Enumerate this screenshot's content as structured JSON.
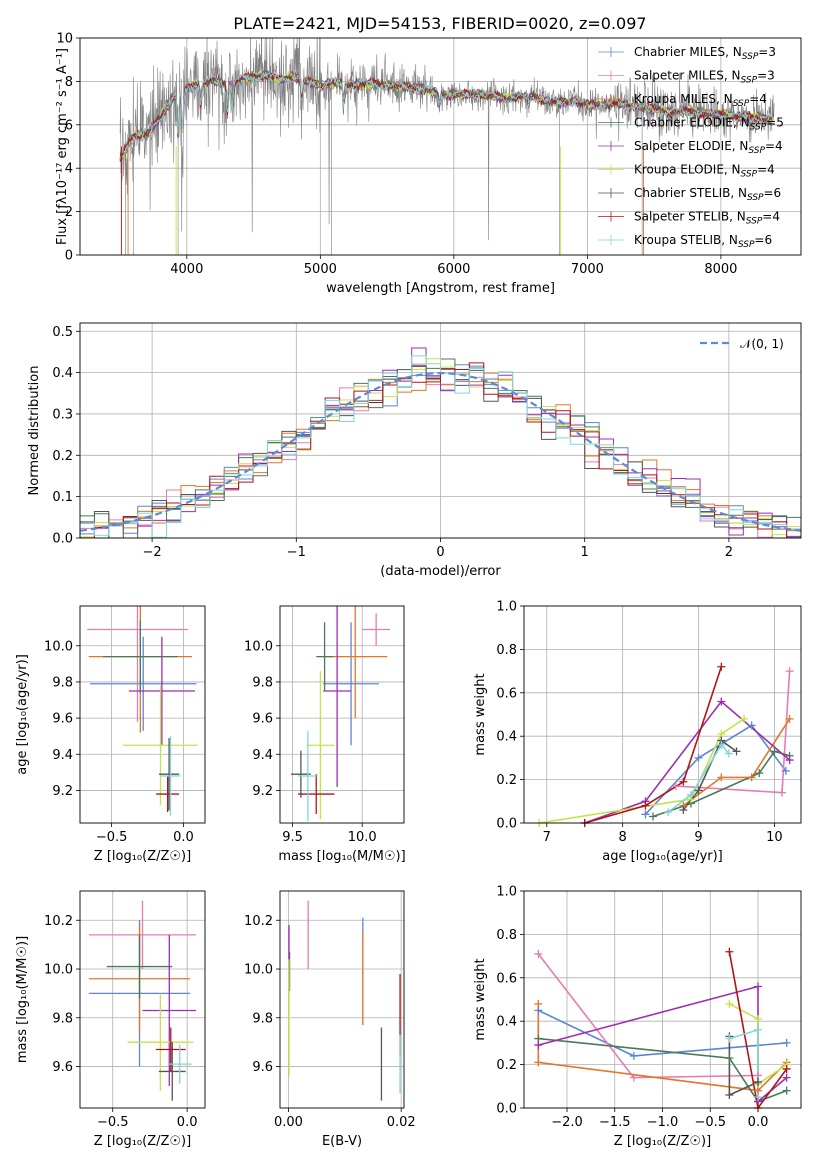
{
  "figure_title": "PLATE=2421, MJD=54153, FIBERID=0020, z=0.097",
  "colors": {
    "Chabrier MILES": "#5b86d6",
    "Salpeter MILES": "#e77cb3",
    "Kroupa MILES": "#e4762a",
    "Chabrier ELODIE": "#4a7a55",
    "Salpeter ELODIE": "#9c2fb0",
    "Kroupa ELODIE": "#c6e24a",
    "Chabrier STELIB": "#555555",
    "Salpeter STELIB": "#b01515",
    "Kroupa STELIB": "#7fd6da",
    "data": "#808080",
    "gauss": "#5a8bd6"
  },
  "chart_data": [
    {
      "id": "spectrum",
      "type": "line",
      "title": "PLATE=2421, MJD=54153, FIBERID=0020, z=0.097",
      "xlabel": "wavelength [Angstrom, rest frame]",
      "ylabel": "Flux [fλ10⁻¹⁷ erg cm⁻² s⁻¹ A⁻¹]",
      "xlim": [
        3200,
        8600
      ],
      "ylim": [
        0,
        10
      ],
      "xticks": [
        4000,
        5000,
        6000,
        7000,
        8000
      ],
      "yticks": [
        0,
        2,
        4,
        6,
        8,
        10
      ],
      "legend_position": "upper-right",
      "legend": [
        "Chabrier MILES, N_SSP=3",
        "Salpeter MILES, N_SSP=3",
        "Kroupa MILES, N_SSP=4",
        "Chabrier ELODIE, N_SSP=5",
        "Salpeter ELODIE, N_SSP=4",
        "Kroupa ELODIE, N_SSP=4",
        "Chabrier STELIB, N_SSP=6",
        "Salpeter STELIB, N_SSP=4",
        "Kroupa STELIB, N_SSP=6"
      ],
      "continuum": [
        [
          3500,
          4.4
        ],
        [
          3600,
          5.5
        ],
        [
          3700,
          5.6
        ],
        [
          3800,
          6.3
        ],
        [
          3900,
          7.3
        ],
        [
          4000,
          7.7
        ],
        [
          4100,
          7.9
        ],
        [
          4200,
          8.1
        ],
        [
          4300,
          7.8
        ],
        [
          4400,
          8.1
        ],
        [
          4500,
          8.2
        ],
        [
          4600,
          8.3
        ],
        [
          4700,
          8.1
        ],
        [
          4800,
          8.2
        ],
        [
          4900,
          8.0
        ],
        [
          5000,
          7.8
        ],
        [
          5100,
          8.0
        ],
        [
          5200,
          7.8
        ],
        [
          5300,
          7.9
        ],
        [
          5400,
          7.9
        ],
        [
          5500,
          7.8
        ],
        [
          5600,
          7.8
        ],
        [
          5700,
          7.7
        ],
        [
          5800,
          7.6
        ],
        [
          5900,
          7.4
        ],
        [
          6000,
          7.4
        ],
        [
          6100,
          7.4
        ],
        [
          6200,
          7.4
        ],
        [
          6300,
          7.3
        ],
        [
          6400,
          7.2
        ],
        [
          6500,
          7.3
        ],
        [
          6600,
          7.3
        ],
        [
          6700,
          7.1
        ],
        [
          6800,
          7.0
        ],
        [
          6900,
          7.1
        ],
        [
          7000,
          6.9
        ],
        [
          7100,
          6.9
        ],
        [
          7200,
          7.0
        ],
        [
          7300,
          6.9
        ],
        [
          7400,
          6.8
        ],
        [
          7500,
          6.7
        ],
        [
          7600,
          6.6
        ],
        [
          7700,
          6.6
        ],
        [
          7800,
          6.6
        ],
        [
          7900,
          6.5
        ],
        [
          8000,
          6.5
        ],
        [
          8100,
          6.4
        ],
        [
          8200,
          6.4
        ],
        [
          8300,
          6.3
        ],
        [
          8400,
          6.3
        ]
      ],
      "absorption_lines": [
        [
          3934,
          5.5
        ],
        [
          3969,
          5.7
        ],
        [
          4102,
          6.9
        ],
        [
          4305,
          6.6
        ],
        [
          4341,
          6.8
        ],
        [
          4861,
          7.3
        ],
        [
          5175,
          7.2
        ],
        [
          5893,
          7.0
        ],
        [
          6563,
          7.0
        ]
      ]
    },
    {
      "id": "residuals",
      "type": "line",
      "xlabel": "(data-model)/error",
      "ylabel": "Normed distribution",
      "xlim": [
        -2.5,
        2.5
      ],
      "ylim": [
        0,
        0.52
      ],
      "xticks": [
        -2,
        -1,
        0,
        1,
        2
      ],
      "yticks": [
        0.0,
        0.1,
        0.2,
        0.3,
        0.4,
        0.5
      ],
      "legend_position": "upper-right",
      "legend": [
        "𝒩(0, 1)"
      ],
      "bin_edges": [
        -2.5,
        2.5
      ],
      "bin_count": 50
    },
    {
      "id": "age-vs-Z",
      "type": "scatter",
      "xlabel": "Z [log₁₀(Z/Z☉)]",
      "ylabel": "age  [log₁₀(age/yr)]",
      "xlim": [
        -0.72,
        0.15
      ],
      "ylim": [
        9.02,
        10.22
      ],
      "xticks": [
        -0.5,
        0.0
      ],
      "yticks": [
        9.2,
        9.4,
        9.6,
        9.8,
        10.0
      ],
      "points": [
        {
          "model": "Chabrier MILES",
          "x": -0.28,
          "xerr": 0.37,
          "y": 9.79,
          "yerr": 0.26
        },
        {
          "model": "Salpeter MILES",
          "x": -0.32,
          "xerr": 0.35,
          "y": 10.09,
          "yerr": 0.51
        },
        {
          "model": "Kroupa MILES",
          "x": -0.3,
          "xerr": 0.36,
          "y": 9.94,
          "yerr": 0.42
        },
        {
          "model": "Chabrier ELODIE",
          "x": -0.3,
          "xerr": 0.26,
          "y": 9.94,
          "yerr": 0.2
        },
        {
          "model": "Salpeter ELODIE",
          "x": -0.15,
          "xerr": 0.23,
          "y": 9.75,
          "yerr": 0.3
        },
        {
          "model": "Kroupa ELODIE",
          "x": -0.16,
          "xerr": 0.26,
          "y": 9.45,
          "yerr": 0.33
        },
        {
          "model": "Chabrier STELIB",
          "x": -0.1,
          "xerr": 0.07,
          "y": 9.29,
          "yerr": 0.2
        },
        {
          "model": "Salpeter STELIB",
          "x": -0.11,
          "xerr": 0.08,
          "y": 9.18,
          "yerr": 0.1
        },
        {
          "model": "Kroupa STELIB",
          "x": -0.09,
          "xerr": 0.07,
          "y": 9.28,
          "yerr": 0.22
        }
      ]
    },
    {
      "id": "age-vs-mass",
      "type": "scatter",
      "xlabel": "mass [log₁₀(M/M☉)]",
      "xlim": [
        9.41,
        10.3
      ],
      "ylim": [
        9.02,
        10.22
      ],
      "xticks": [
        9.5,
        10.0
      ],
      "yticks": [
        9.2,
        9.4,
        9.6,
        9.8,
        10.0
      ],
      "points": [
        {
          "model": "Chabrier MILES",
          "x": 9.92,
          "xerr": 0.2,
          "y": 9.79,
          "yerr": 0.34
        },
        {
          "model": "Salpeter MILES",
          "x": 10.1,
          "xerr": 0.1,
          "y": 10.09,
          "yerr": 0.09
        },
        {
          "model": "Kroupa MILES",
          "x": 9.95,
          "xerr": 0.23,
          "y": 9.94,
          "yerr": 0.34
        },
        {
          "model": "Chabrier ELODIE",
          "x": 9.73,
          "xerr": 0.06,
          "y": 9.94,
          "yerr": 0.19
        },
        {
          "model": "Salpeter ELODIE",
          "x": 9.82,
          "xerr": 0.1,
          "y": 9.75,
          "yerr": 0.53
        },
        {
          "model": "Kroupa ELODIE",
          "x": 9.7,
          "xerr": 0.1,
          "y": 9.45,
          "yerr": 0.41
        },
        {
          "model": "Chabrier STELIB",
          "x": 9.56,
          "xerr": 0.07,
          "y": 9.29,
          "yerr": 0.13
        },
        {
          "model": "Salpeter STELIB",
          "x": 9.67,
          "xerr": 0.13,
          "y": 9.18,
          "yerr": 0.11
        },
        {
          "model": "Kroupa STELIB",
          "x": 9.61,
          "xerr": 0.07,
          "y": 9.28,
          "yerr": 0.25
        }
      ]
    },
    {
      "id": "weight-vs-age",
      "type": "line",
      "xlabel": "age  [log₁₀(age/yr)]",
      "ylabel": "mass weight",
      "xlim": [
        6.7,
        10.35
      ],
      "ylim": [
        0,
        1.0
      ],
      "xticks": [
        7,
        8,
        9,
        10
      ],
      "yticks": [
        0.0,
        0.2,
        0.4,
        0.6,
        0.8,
        1.0
      ],
      "series": [
        {
          "model": "Chabrier MILES",
          "points": [
            [
              8.3,
              0.04
            ],
            [
              9.0,
              0.3
            ],
            [
              9.7,
              0.45
            ],
            [
              10.15,
              0.24
            ]
          ]
        },
        {
          "model": "Salpeter MILES",
          "points": [
            [
              8.7,
              0.17
            ],
            [
              10.1,
              0.14
            ],
            [
              10.2,
              0.7
            ]
          ]
        },
        {
          "model": "Kroupa MILES",
          "points": [
            [
              8.8,
              0.08
            ],
            [
              9.3,
              0.21
            ],
            [
              9.7,
              0.21
            ],
            [
              10.2,
              0.48
            ]
          ]
        },
        {
          "model": "Chabrier ELODIE",
          "points": [
            [
              8.4,
              0.03
            ],
            [
              8.9,
              0.09
            ],
            [
              9.8,
              0.23
            ],
            [
              10.0,
              0.33
            ],
            [
              10.2,
              0.31
            ]
          ]
        },
        {
          "model": "Salpeter ELODIE",
          "points": [
            [
              7.5,
              0.0
            ],
            [
              8.3,
              0.1
            ],
            [
              9.3,
              0.56
            ],
            [
              10.2,
              0.29
            ]
          ]
        },
        {
          "model": "Kroupa ELODIE",
          "points": [
            [
              6.9,
              0.0
            ],
            [
              8.9,
              0.11
            ],
            [
              9.3,
              0.41
            ],
            [
              9.6,
              0.48
            ]
          ]
        },
        {
          "model": "Chabrier STELIB",
          "points": [
            [
              8.8,
              0.06
            ],
            [
              9.0,
              0.15
            ],
            [
              9.3,
              0.38
            ],
            [
              9.5,
              0.33
            ]
          ]
        },
        {
          "model": "Salpeter STELIB",
          "points": [
            [
              7.5,
              0.0
            ],
            [
              8.3,
              0.08
            ],
            [
              8.8,
              0.19
            ],
            [
              9.3,
              0.72
            ]
          ]
        },
        {
          "model": "Kroupa STELIB",
          "points": [
            [
              8.6,
              0.05
            ],
            [
              8.9,
              0.13
            ],
            [
              9.3,
              0.36
            ],
            [
              9.4,
              0.32
            ]
          ]
        }
      ]
    },
    {
      "id": "mass-vs-Z",
      "type": "scatter",
      "xlabel": "Z [log₁₀(Z/Z☉)]",
      "ylabel": "mass [log₁₀(M/M☉)]",
      "xlim": [
        -0.72,
        0.12
      ],
      "ylim": [
        9.43,
        10.32
      ],
      "xticks": [
        -0.5,
        0.0
      ],
      "yticks": [
        9.6,
        9.8,
        10.0,
        10.2
      ],
      "points": [
        {
          "model": "Chabrier MILES",
          "x": -0.32,
          "xerr": 0.34,
          "y": 9.9,
          "yerr": 0.3
        },
        {
          "model": "Salpeter MILES",
          "x": -0.3,
          "xerr": 0.36,
          "y": 10.14,
          "yerr": 0.14
        },
        {
          "model": "Kroupa MILES",
          "x": -0.32,
          "xerr": 0.34,
          "y": 9.96,
          "yerr": 0.22
        },
        {
          "model": "Chabrier ELODIE",
          "x": -0.32,
          "xerr": 0.22,
          "y": 10.01,
          "yerr": 0.13
        },
        {
          "model": "Salpeter ELODIE",
          "x": -0.12,
          "xerr": 0.18,
          "y": 9.83,
          "yerr": 0.31
        },
        {
          "model": "Kroupa ELODIE",
          "x": -0.18,
          "xerr": 0.22,
          "y": 9.7,
          "yerr": 0.2
        },
        {
          "model": "Chabrier STELIB",
          "x": -0.1,
          "xerr": 0.09,
          "y": 9.58,
          "yerr": 0.12
        },
        {
          "model": "Salpeter STELIB",
          "x": -0.11,
          "xerr": 0.1,
          "y": 9.67,
          "yerr": 0.09
        },
        {
          "model": "Kroupa STELIB",
          "x": -0.05,
          "xerr": 0.08,
          "y": 9.61,
          "yerr": 0.08
        }
      ]
    },
    {
      "id": "mass-vs-EBV",
      "type": "scatter",
      "xlabel": "E(B-V)",
      "xlim": [
        -0.0015,
        0.0205
      ],
      "ylim": [
        9.43,
        10.32
      ],
      "xticks": [
        0.0,
        0.02
      ],
      "yticks": [
        9.6,
        9.8,
        10.0,
        10.2
      ],
      "points": [
        {
          "model": "Chabrier MILES",
          "x": 0.0132,
          "xerr": 0,
          "y": 9.99,
          "yerr": 0.22
        },
        {
          "model": "Salpeter MILES",
          "x": 0.0035,
          "xerr": 0,
          "y": 10.14,
          "yerr": 0.14
        },
        {
          "model": "Kroupa MILES",
          "x": 0.0132,
          "xerr": 0,
          "y": 9.96,
          "yerr": 0.19
        },
        {
          "model": "Chabrier ELODIE",
          "x": 0.0002,
          "xerr": 0,
          "y": 9.99,
          "yerr": 0.08
        },
        {
          "model": "Salpeter ELODIE",
          "x": 0.0001,
          "xerr": 0,
          "y": 10.09,
          "yerr": 0.09
        },
        {
          "model": "Kroupa ELODIE",
          "x": 0.0001,
          "xerr": 0,
          "y": 9.8,
          "yerr": 0.24
        },
        {
          "model": "Chabrier STELIB",
          "x": 0.0165,
          "xerr": 0,
          "y": 9.61,
          "yerr": 0.15
        },
        {
          "model": "Salpeter STELIB",
          "x": 0.0198,
          "xerr": 0,
          "y": 9.81,
          "yerr": 0.17
        },
        {
          "model": "Kroupa STELIB",
          "x": 0.0198,
          "xerr": 0,
          "y": 9.61,
          "yerr": 0.12
        }
      ]
    },
    {
      "id": "weight-vs-Z",
      "type": "line",
      "xlabel": "Z [log₁₀(Z/Z☉)]",
      "ylabel": "mass weight",
      "xlim": [
        -2.45,
        0.45
      ],
      "ylim": [
        0,
        1.0
      ],
      "xticks": [
        -2.0,
        -1.5,
        -1.0,
        -0.5,
        0.0
      ],
      "yticks": [
        0.0,
        0.2,
        0.4,
        0.6,
        0.8,
        1.0
      ],
      "series": [
        {
          "model": "Chabrier MILES",
          "points": [
            [
              -2.3,
              0.45
            ],
            [
              -1.3,
              0.24
            ],
            [
              0.3,
              0.3
            ]
          ]
        },
        {
          "model": "Salpeter MILES",
          "points": [
            [
              -2.3,
              0.71
            ],
            [
              -1.3,
              0.14
            ],
            [
              0.0,
              0.15
            ]
          ]
        },
        {
          "model": "Kroupa MILES",
          "points": [
            [
              -2.3,
              0.48
            ],
            [
              -2.3,
              0.21
            ],
            [
              0.0,
              0.08
            ],
            [
              0.3,
              0.21
            ]
          ]
        },
        {
          "model": "Chabrier ELODIE",
          "points": [
            [
              -2.3,
              0.32
            ],
            [
              -0.3,
              0.23
            ],
            [
              0.0,
              0.03
            ],
            [
              0.3,
              0.08
            ]
          ]
        },
        {
          "model": "Salpeter ELODIE",
          "points": [
            [
              -2.3,
              0.29
            ],
            [
              0.0,
              0.56
            ],
            [
              0.0,
              0.03
            ],
            [
              0.3,
              0.14
            ]
          ]
        },
        {
          "model": "Kroupa ELODIE",
          "points": [
            [
              -0.3,
              0.48
            ],
            [
              0.0,
              0.41
            ],
            [
              0.0,
              0.11
            ],
            [
              0.3,
              0.2
            ]
          ]
        },
        {
          "model": "Chabrier STELIB",
          "points": [
            [
              -0.3,
              0.33
            ],
            [
              -0.3,
              0.06
            ],
            [
              0.0,
              0.12
            ]
          ]
        },
        {
          "model": "Salpeter STELIB",
          "points": [
            [
              -0.3,
              0.72
            ],
            [
              0.0,
              0.0
            ],
            [
              0.3,
              0.18
            ]
          ]
        },
        {
          "model": "Kroupa STELIB",
          "points": [
            [
              -0.3,
              0.32
            ],
            [
              0.0,
              0.36
            ],
            [
              0.0,
              0.05
            ]
          ]
        }
      ]
    }
  ]
}
